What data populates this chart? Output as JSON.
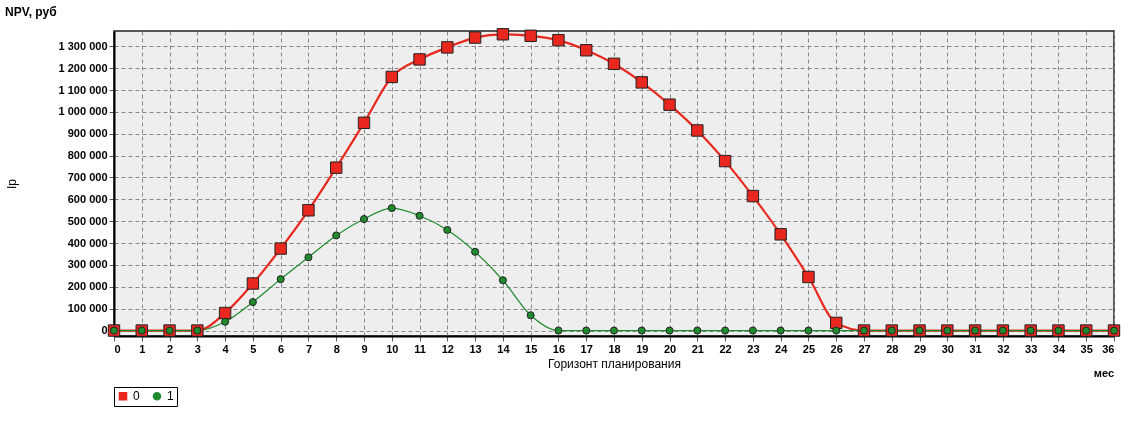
{
  "chart_data": {
    "type": "line",
    "title": "NPV, руб",
    "xlabel": "Горизонт планирования",
    "ylabel": "Ip",
    "annotations": [
      "мес"
    ],
    "x": [
      0,
      1,
      2,
      3,
      4,
      5,
      6,
      7,
      8,
      9,
      10,
      11,
      12,
      13,
      14,
      15,
      16,
      17,
      18,
      19,
      20,
      21,
      22,
      23,
      24,
      25,
      26,
      27,
      28,
      29,
      30,
      31,
      32,
      33,
      34,
      35,
      36
    ],
    "series": [
      {
        "name": "0",
        "color": "#e8281e",
        "marker": "square",
        "values": [
          0,
          0,
          0,
          0,
          80000,
          215000,
          375000,
          550000,
          745000,
          950000,
          1160000,
          1240000,
          1295000,
          1340000,
          1355000,
          1348000,
          1328000,
          1282000,
          1220000,
          1135000,
          1033000,
          915000,
          775000,
          615000,
          440000,
          245000,
          35000,
          0,
          0,
          0,
          0,
          0,
          0,
          0,
          0,
          0,
          0
        ]
      },
      {
        "name": "1",
        "color": "#1f8a2e",
        "marker": "circle",
        "values": [
          0,
          0,
          0,
          0,
          40000,
          130000,
          235000,
          335000,
          435000,
          510000,
          560000,
          525000,
          460000,
          360000,
          230000,
          70000,
          0,
          0,
          0,
          0,
          0,
          0,
          0,
          0,
          0,
          0,
          0,
          0,
          0,
          0,
          0,
          0,
          0,
          0,
          0,
          0,
          0
        ]
      }
    ],
    "xlim": [
      0,
      36
    ],
    "xticks": [
      0,
      1,
      2,
      3,
      4,
      5,
      6,
      7,
      8,
      9,
      10,
      11,
      12,
      13,
      14,
      15,
      16,
      17,
      18,
      19,
      20,
      21,
      22,
      23,
      24,
      25,
      26,
      27,
      28,
      29,
      30,
      31,
      32,
      33,
      34,
      35,
      36
    ],
    "ylim": [
      -25000,
      1370000
    ],
    "yticks": [
      0,
      {
        "value": 100000,
        "label": "100 000"
      },
      {
        "value": 200000,
        "label": "200 000"
      },
      {
        "value": 300000,
        "label": "300 000"
      },
      {
        "value": 400000,
        "label": "400 000"
      },
      {
        "value": 500000,
        "label": "500 000"
      },
      {
        "value": 600000,
        "label": "600 000"
      },
      {
        "value": 700000,
        "label": "700 000"
      },
      {
        "value": 800000,
        "label": "800 000"
      },
      {
        "value": 900000,
        "label": "900 000"
      },
      {
        "value": 1000000,
        "label": "1 000 000"
      },
      {
        "value": 1100000,
        "label": "1 100 000"
      },
      {
        "value": 1200000,
        "label": "1 200 000"
      },
      {
        "value": 1300000,
        "label": "1 300 000"
      }
    ],
    "grid": true,
    "legend": "bottom",
    "line_style": "solid"
  }
}
